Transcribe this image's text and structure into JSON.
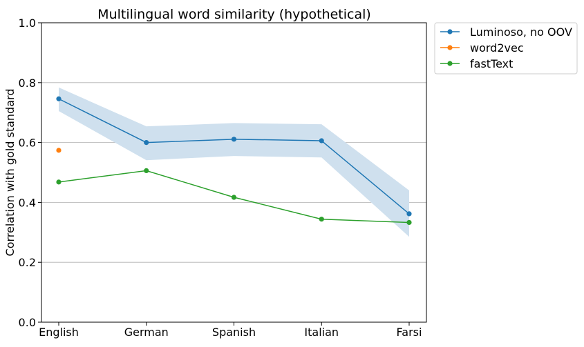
{
  "chart_data": {
    "type": "line",
    "title": "Multilingual word similarity (hypothetical)",
    "xlabel": "",
    "ylabel": "Correlation with gold standard",
    "categories": [
      "English",
      "German",
      "Spanish",
      "Italian",
      "Farsi"
    ],
    "ylim": [
      0.0,
      1.0
    ],
    "yticks": [
      "0.0",
      "0.2",
      "0.4",
      "0.6",
      "0.8",
      "1.0"
    ],
    "grid": "horizontal",
    "legend_position": "outside-top-right",
    "series": [
      {
        "name": "Luminoso, no OOV",
        "color": "#1f77b4",
        "values": [
          0.746,
          0.6,
          0.611,
          0.606,
          0.362
        ],
        "band_lower": [
          0.705,
          0.541,
          0.555,
          0.55,
          0.285
        ],
        "band_upper": [
          0.784,
          0.654,
          0.665,
          0.661,
          0.44
        ],
        "band_color": "#cfe0ee"
      },
      {
        "name": "word2vec",
        "color": "#ff7f0e",
        "values": [
          0.574,
          null,
          null,
          null,
          null
        ]
      },
      {
        "name": "fastText",
        "color": "#2ca02c",
        "values": [
          0.468,
          0.506,
          0.417,
          0.344,
          0.333
        ]
      }
    ]
  }
}
